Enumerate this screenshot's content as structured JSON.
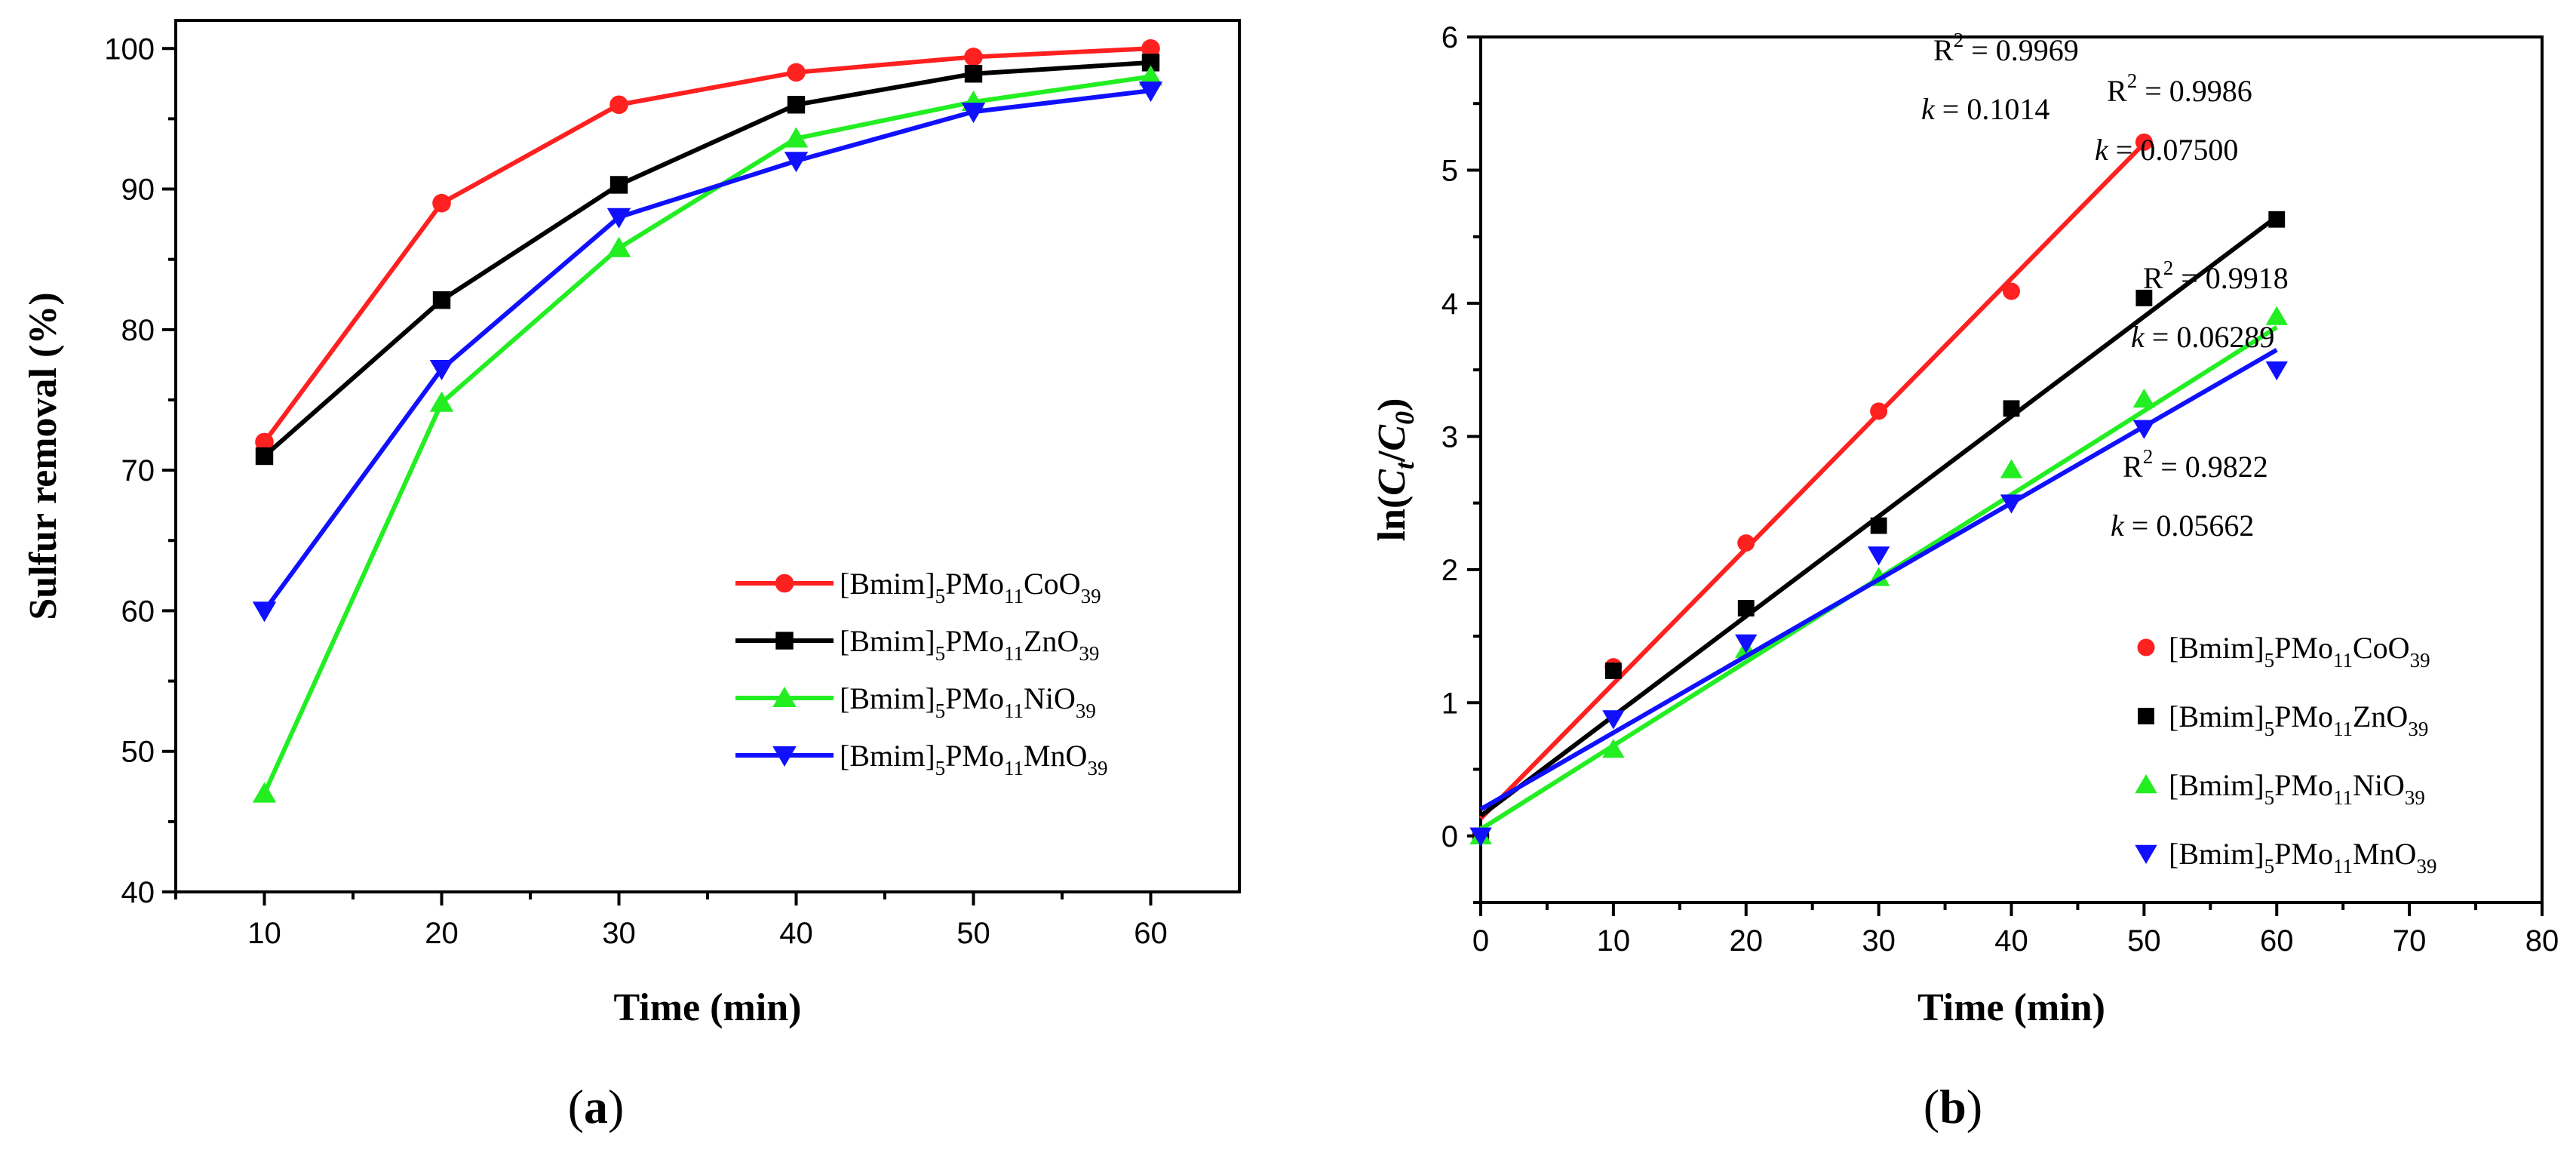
{
  "chart_data": [
    {
      "type": "line",
      "panel": "a",
      "panel_label": [
        "(",
        "a",
        ")"
      ],
      "xlabel": "Time (min)",
      "ylabel": "Sulfur removal (%)",
      "xlim": [
        5,
        65
      ],
      "ylim": [
        40,
        102
      ],
      "xticks": [
        10,
        20,
        30,
        40,
        50,
        60
      ],
      "yticks": [
        40,
        50,
        60,
        70,
        80,
        90,
        100
      ],
      "legend_position": "bottom-right",
      "x": [
        10,
        20,
        30,
        40,
        50,
        60
      ],
      "series": [
        {
          "name": "[Bmim]5PMo11CoO39",
          "label_parts": [
            "[Bmim]",
            "5",
            "PMo",
            "11",
            "CoO",
            "39"
          ],
          "color": "#ff2020",
          "marker": "circle",
          "values": [
            72,
            89,
            96,
            98.3,
            99.4,
            100
          ]
        },
        {
          "name": "[Bmim]5PMo11ZnO39",
          "label_parts": [
            "[Bmim]",
            "5",
            "PMo",
            "11",
            "ZnO",
            "39"
          ],
          "color": "#000000",
          "marker": "square",
          "values": [
            71,
            82.1,
            90.3,
            96,
            98.2,
            99
          ]
        },
        {
          "name": "[Bmim]5PMo11NiO39",
          "label_parts": [
            "[Bmim]",
            "5",
            "PMo",
            "11",
            "NiO",
            "39"
          ],
          "color": "#22ee22",
          "marker": "triangle-up",
          "values": [
            47,
            74.8,
            85.8,
            93.6,
            96.2,
            98
          ]
        },
        {
          "name": "[Bmim]5PMo11MnO39",
          "label_parts": [
            "[Bmim]",
            "5",
            "PMo",
            "11",
            "MnO",
            "39"
          ],
          "color": "#1010ff",
          "marker": "triangle-down",
          "values": [
            60,
            77.2,
            88,
            92,
            95.5,
            97
          ]
        }
      ]
    },
    {
      "type": "scatter",
      "panel": "b",
      "panel_label": [
        "(",
        "b",
        ")"
      ],
      "xlabel": "Time (min)",
      "ylabel_parts": [
        "ln(",
        "C",
        "t",
        "/",
        "C",
        "0",
        ")"
      ],
      "xlim": [
        0,
        80
      ],
      "ylim": [
        -0.5,
        6
      ],
      "xticks": [
        0,
        10,
        20,
        30,
        40,
        50,
        60,
        70,
        80
      ],
      "yticks": [
        0,
        1,
        2,
        3,
        4,
        5,
        6
      ],
      "legend_position": "bottom-right",
      "series": [
        {
          "name": "[Bmim]5PMo11CoO39",
          "label_parts": [
            "[Bmim]",
            "5",
            "PMo",
            "11",
            "CoO",
            "39"
          ],
          "color": "#ff2020",
          "marker": "circle",
          "x": [
            0,
            10,
            20,
            30,
            40,
            50
          ],
          "values": [
            0,
            1.27,
            2.2,
            3.19,
            4.09,
            5.21
          ],
          "fit": {
            "x0": 0,
            "y0": 0.13,
            "x1": 50,
            "y1": 5.2,
            "r2_text": "0.9969",
            "k_text": "0.1014"
          }
        },
        {
          "name": "[Bmim]5PMo11ZnO39",
          "label_parts": [
            "[Bmim]",
            "5",
            "PMo",
            "11",
            "ZnO",
            "39"
          ],
          "color": "#000000",
          "marker": "square",
          "x": [
            0,
            10,
            20,
            30,
            40,
            50,
            60
          ],
          "values": [
            0,
            1.24,
            1.71,
            2.33,
            3.21,
            4.04,
            4.63
          ],
          "fit": {
            "x0": 0,
            "y0": 0.15,
            "x1": 60,
            "y1": 4.65,
            "r2_text": "0.9986",
            "k_text": "0.07500"
          }
        },
        {
          "name": "[Bmim]5PMo11NiO39",
          "label_parts": [
            "[Bmim]",
            "5",
            "PMo",
            "11",
            "NiO",
            "39"
          ],
          "color": "#22ee22",
          "marker": "triangle-up",
          "x": [
            0,
            10,
            20,
            30,
            40,
            50,
            60
          ],
          "values": [
            0,
            0.65,
            1.4,
            1.94,
            2.75,
            3.28,
            3.9
          ],
          "fit": {
            "x0": 0,
            "y0": 0.05,
            "x1": 60,
            "y1": 3.82,
            "r2_text": "0.9918",
            "k_text": "0.06289"
          }
        },
        {
          "name": "[Bmim]5PMo11MnO39",
          "label_parts": [
            "[Bmim]",
            "5",
            "PMo",
            "11",
            "MnO",
            "39"
          ],
          "color": "#1010ff",
          "marker": "triangle-down",
          "x": [
            0,
            10,
            20,
            30,
            40,
            50,
            60
          ],
          "values": [
            0,
            0.88,
            1.45,
            2.11,
            2.5,
            3.06,
            3.5
          ],
          "fit": {
            "x0": 0,
            "y0": 0.2,
            "x1": 60,
            "y1": 3.65,
            "r2_text": "0.9822",
            "k_text": "0.05662"
          }
        }
      ],
      "annotations_label": {
        "r2": [
          "R",
          "2",
          " = "
        ],
        "k": [
          "k",
          " = "
        ]
      }
    }
  ]
}
